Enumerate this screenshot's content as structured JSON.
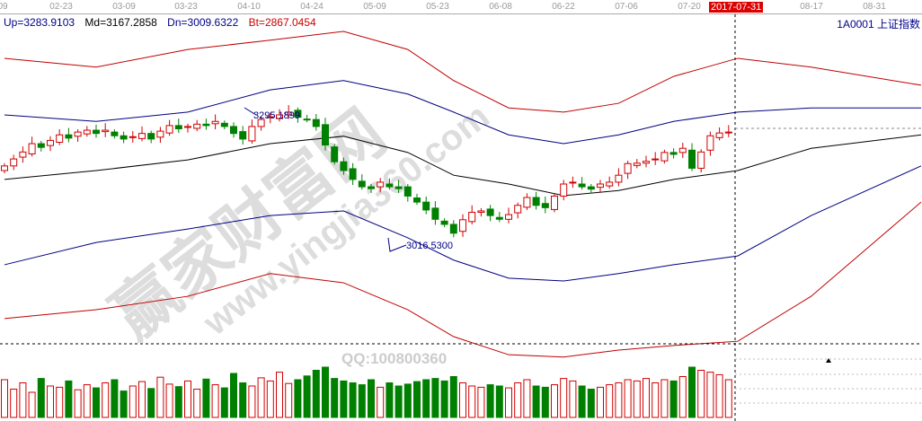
{
  "axis": {
    "dates": [
      "09",
      "02-23",
      "03-09",
      "03-23",
      "04-10",
      "04-24",
      "05-09",
      "05-23",
      "06-08",
      "06-22",
      "07-06",
      "07-20",
      "08-17",
      "08-31"
    ],
    "current_date": "2017-07-31"
  },
  "legend": {
    "up": "Up=3283.9103",
    "md": "Md=3167.2858",
    "dn": "Dn=3009.6322",
    "bt": "Bt=2867.0454"
  },
  "symbol": "1A0001  上证指数",
  "colors": {
    "up": "#d00000",
    "down": "#008000",
    "upper_band": "#c00000",
    "mid": "#000000",
    "blue_band": "#000080"
  },
  "watermark": {
    "cn": "赢家财富网",
    "url": "www.yingjia360.com",
    "qq": "QQ:100800360"
  },
  "chart_data": {
    "type": "candlestick",
    "annotations": {
      "high": "3295.1899",
      "low": "3016.5300"
    },
    "closes": [
      3185,
      3200,
      3215,
      3233,
      3225,
      3240,
      3252,
      3245,
      3258,
      3262,
      3255,
      3262,
      3250,
      3243,
      3248,
      3255,
      3243,
      3260,
      3272,
      3265,
      3270,
      3275,
      3272,
      3281,
      3270,
      3255,
      3243,
      3270,
      3285,
      3291,
      3295,
      3301,
      3290,
      3285,
      3270,
      3230,
      3194,
      3175,
      3156,
      3140,
      3136,
      3150,
      3140,
      3136,
      3120,
      3107,
      3090,
      3070,
      3059,
      3040,
      3069,
      3085,
      3088,
      3078,
      3070,
      3080,
      3100,
      3117,
      3100,
      3095,
      3120,
      3146,
      3150,
      3140,
      3135,
      3146,
      3150,
      3165,
      3190,
      3191,
      3195,
      3200,
      3214,
      3210,
      3223,
      3180,
      3215,
      3250,
      3256,
      3258
    ],
    "volumes": [
      60,
      45,
      55,
      40,
      62,
      50,
      48,
      58,
      44,
      52,
      47,
      55,
      60,
      42,
      50,
      57,
      46,
      64,
      53,
      49,
      58,
      45,
      61,
      52,
      47,
      70,
      55,
      50,
      63,
      58,
      72,
      54,
      60,
      66,
      75,
      80,
      62,
      58,
      55,
      52,
      60,
      48,
      55,
      50,
      53,
      57,
      60,
      62,
      58,
      65,
      55,
      50,
      48,
      52,
      50,
      47,
      55,
      60,
      50,
      48,
      52,
      62,
      58,
      50,
      45,
      48,
      52,
      55,
      60,
      58,
      62,
      55,
      60,
      58,
      65,
      80,
      75,
      72,
      68,
      60
    ],
    "bands": {
      "idx": [
        0,
        10,
        20,
        29,
        37,
        44,
        49,
        55,
        61,
        67,
        73,
        80,
        88,
        100
      ],
      "outer_upper": [
        3417,
        3398,
        3436,
        3456,
        3475,
        3436,
        3369,
        3310,
        3301,
        3320,
        3378,
        3417,
        3398,
        3359
      ],
      "upper": [
        3295,
        3281,
        3301,
        3349,
        3369,
        3340,
        3301,
        3252,
        3233,
        3252,
        3281,
        3301,
        3310,
        3310
      ],
      "mid": [
        3156,
        3175,
        3198,
        3233,
        3249,
        3214,
        3165,
        3146,
        3121,
        3132,
        3156,
        3175,
        3223,
        3252
      ],
      "lower": [
        2972,
        3020,
        3049,
        3078,
        3088,
        3030,
        2982,
        2943,
        2937,
        2953,
        2972,
        2991,
        3078,
        3185
      ],
      "outer_lower": [
        2856,
        2875,
        2904,
        2953,
        2933,
        2875,
        2817,
        2778,
        2773,
        2788,
        2798,
        2807,
        2904,
        3107
      ]
    }
  }
}
